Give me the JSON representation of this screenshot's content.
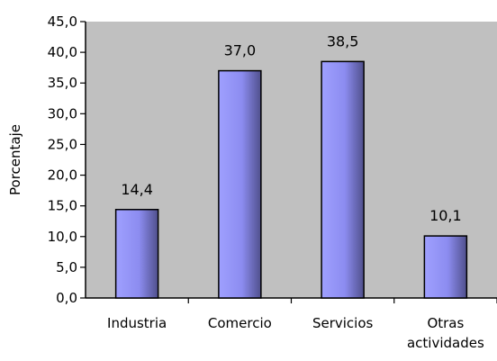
{
  "chart_data": {
    "type": "bar",
    "title": "",
    "xlabel": "",
    "ylabel": "Porcentaje",
    "ylim": [
      0,
      45
    ],
    "ytick_step": 5,
    "ytick_labels": [
      "0,0",
      "5,0",
      "10,0",
      "15,0",
      "20,0",
      "25,0",
      "30,0",
      "35,0",
      "40,0",
      "45,0"
    ],
    "categories": [
      [
        "Industria"
      ],
      [
        "Comercio"
      ],
      [
        "Servicios"
      ],
      [
        "Otras",
        "actividades"
      ]
    ],
    "values": [
      14.4,
      37.0,
      38.5,
      10.1
    ],
    "data_labels": [
      "14,4",
      "37,0",
      "38,5",
      "10,1"
    ],
    "grid": false,
    "legend": "none",
    "colors": {
      "plot_background": "#c0c0c0",
      "bar_light": "#9fa0ff",
      "bar_dark": "#50508c",
      "bar_stroke": "#000000",
      "axis": "#000000"
    }
  }
}
